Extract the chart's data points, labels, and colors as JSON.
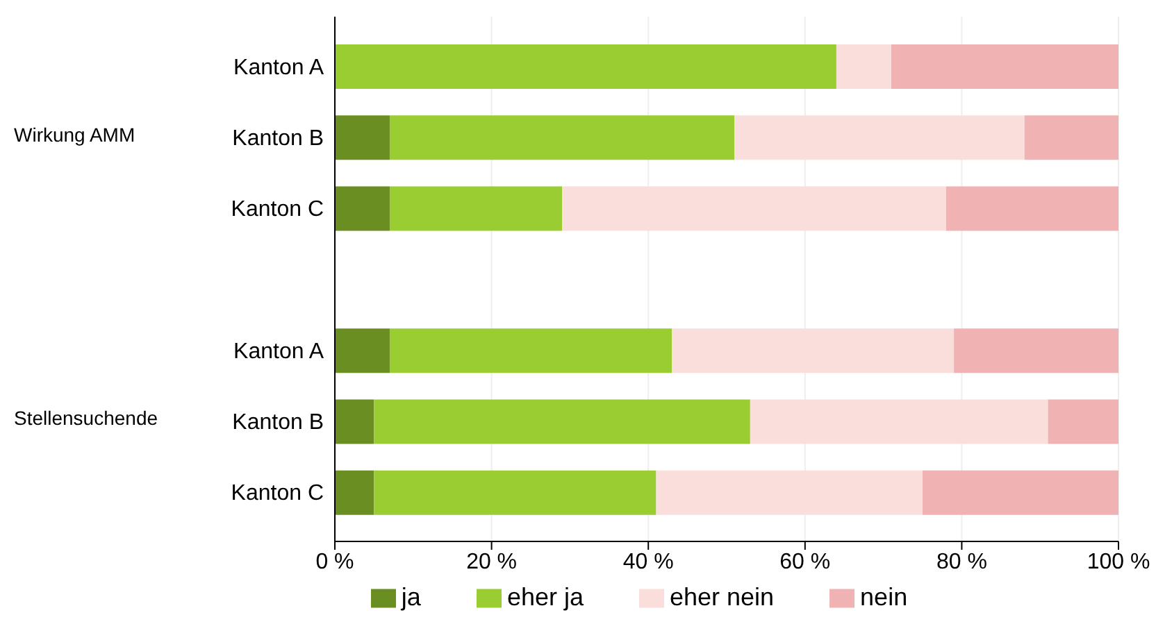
{
  "chart_data": {
    "type": "bar",
    "orientation": "horizontal",
    "stacked": true,
    "categories": [
      "Kanton A",
      "Kanton B",
      "Kanton C",
      null,
      "Kanton A",
      "Kanton B",
      "Kanton C"
    ],
    "series": [
      {
        "name": "ja",
        "color": "#6b8e23",
        "values": [
          0,
          7,
          7,
          null,
          7,
          5,
          5
        ]
      },
      {
        "name": "eher ja",
        "color": "#9acd32",
        "values": [
          64,
          44,
          22,
          null,
          36,
          48,
          36
        ]
      },
      {
        "name": "eher nein",
        "color": "#f9dedc",
        "values": [
          7,
          37,
          49,
          null,
          36,
          38,
          34
        ]
      },
      {
        "name": "nein",
        "color": "#f0b2b2",
        "values": [
          29,
          12,
          22,
          null,
          21,
          9,
          25
        ]
      }
    ],
    "xlim": [
      0,
      100
    ],
    "xticks": [
      {
        "value": 0,
        "label": "0 %"
      },
      {
        "value": 20,
        "label": "20 %"
      },
      {
        "value": 40,
        "label": "40 %"
      },
      {
        "value": 60,
        "label": "60 %"
      },
      {
        "value": 80,
        "label": "80 %"
      },
      {
        "value": 100,
        "label": "100 %"
      }
    ],
    "annotations": [
      "Wirkung AMM",
      "Stellensuchende"
    ],
    "grid": "x",
    "legend": "bottom"
  }
}
